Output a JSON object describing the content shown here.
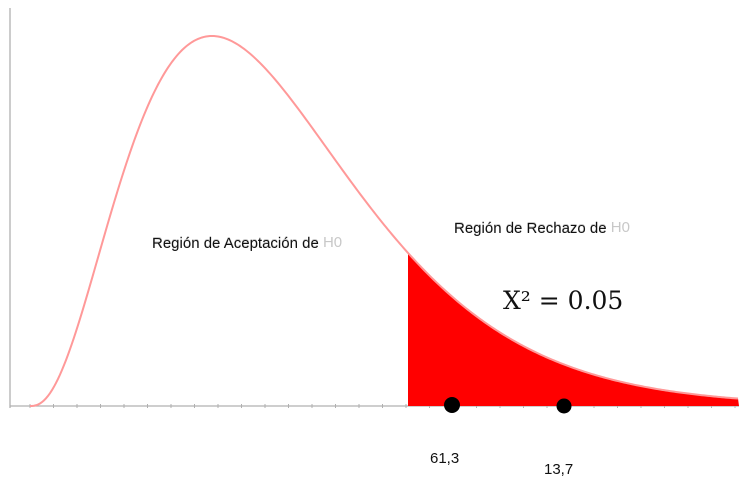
{
  "chart_data": {
    "type": "area",
    "title": "",
    "xlabel": "",
    "ylabel": "",
    "distribution": "chi-square",
    "curve_color": "#ff9999",
    "shade_color": "#ff0000",
    "axis_color": "#b0b0b0",
    "point_color": "#000000",
    "regions": {
      "acceptance": {
        "label": "Región de Aceptación de",
        "ghost_label": "Región de Aceptación de H0"
      },
      "rejection": {
        "label": "Región de Rechazo de",
        "ghost_label": "Región de Rechazo de H0"
      }
    },
    "statistic_label": "X² = 0.05",
    "points": [
      {
        "label": "61,3"
      },
      {
        "label": "13,7"
      }
    ]
  }
}
